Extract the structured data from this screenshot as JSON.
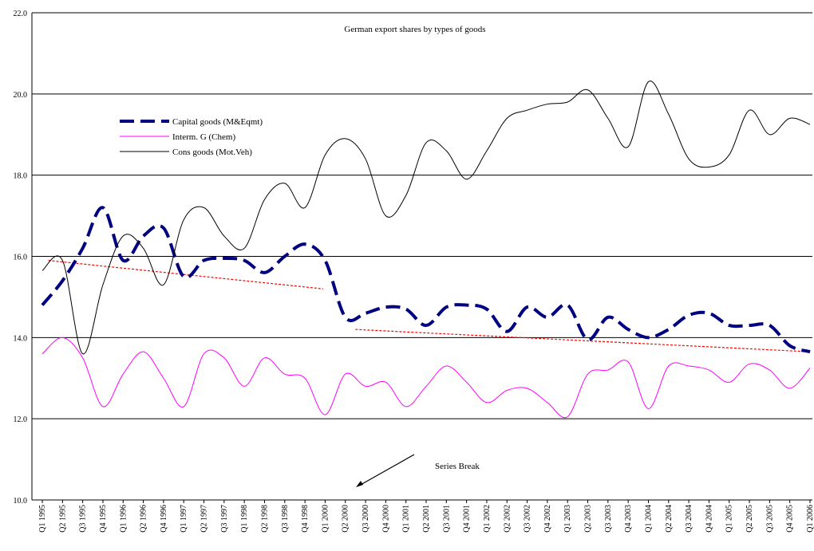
{
  "chart_data": {
    "type": "line",
    "title": "German export shares by types of goods",
    "categories": [
      "Q1 1995",
      "Q2 1995",
      "Q3 1995",
      "Q4 1995",
      "Q1 1996",
      "Q2 1996",
      "Q4 1996",
      "Q1 1997",
      "Q2 1997",
      "Q3 1997",
      "Q1 1998",
      "Q2 1998",
      "Q3 1998",
      "Q4 1998",
      "Q1 2000",
      "Q2 2000",
      "Q3 2000",
      "Q4 2000",
      "Q1 2001",
      "Q2 2001",
      "Q3 2001",
      "Q4 2001",
      "Q1 2002",
      "Q2 2002",
      "Q3 2002",
      "Q4 2002",
      "Q1 2003",
      "Q2 2003",
      "Q3 2003",
      "Q4 2003",
      "Q1 2004",
      "Q2 2004",
      "Q3 2004",
      "Q4 2004",
      "Q1 2005",
      "Q2 2005",
      "Q3 2005",
      "Q4 2005",
      "Q1 2006"
    ],
    "series": [
      {
        "name": "Capital goods (M&Eqmt)",
        "color": "#000080",
        "dash": true,
        "values": [
          14.8,
          15.4,
          16.2,
          17.2,
          15.9,
          16.5,
          16.7,
          15.5,
          15.9,
          15.95,
          15.9,
          15.6,
          16.0,
          16.3,
          15.9,
          14.5,
          14.6,
          14.75,
          14.7,
          14.3,
          14.75,
          14.8,
          14.7,
          14.15,
          14.75,
          14.5,
          14.8,
          13.95,
          14.5,
          14.2,
          14.0,
          14.2,
          14.55,
          14.6,
          14.3,
          14.3,
          14.3,
          13.8,
          13.65
        ]
      },
      {
        "name": "Interm. G (Chem)",
        "color": "#ff00ff",
        "values": [
          13.6,
          14.0,
          13.5,
          12.3,
          13.1,
          13.65,
          13.0,
          12.3,
          13.6,
          13.5,
          12.8,
          13.5,
          13.1,
          13.0,
          12.1,
          13.1,
          12.8,
          12.9,
          12.3,
          12.8,
          13.3,
          12.9,
          12.4,
          12.7,
          12.75,
          12.4,
          12.05,
          13.1,
          13.2,
          13.4,
          12.25,
          13.3,
          13.3,
          13.2,
          12.9,
          13.35,
          13.2,
          12.75,
          13.25
        ]
      },
      {
        "name": "Cons goods (Mot.Veh)",
        "color": "#000000",
        "values": [
          15.65,
          15.9,
          13.6,
          15.3,
          16.5,
          16.2,
          15.3,
          16.9,
          17.2,
          16.5,
          16.2,
          17.4,
          17.8,
          17.2,
          18.5,
          18.9,
          18.4,
          17.0,
          17.5,
          18.8,
          18.6,
          17.9,
          18.6,
          19.4,
          19.6,
          19.75,
          19.8,
          20.1,
          19.4,
          18.7,
          20.3,
          19.5,
          18.4,
          18.2,
          18.5,
          19.6,
          19.0,
          19.4,
          19.25
        ]
      }
    ],
    "trendlines": [
      {
        "color": "#ff0000",
        "x": [
          0.3,
          13.9
        ],
        "values": [
          15.9,
          15.2
        ]
      },
      {
        "color": "#ff0000",
        "x": [
          15.5,
          38
        ],
        "values": [
          14.2,
          13.65
        ]
      }
    ],
    "annotation": "Series Break",
    "ylim": [
      10,
      22
    ],
    "yticks": [
      {
        "value": 10,
        "label": "10.0"
      },
      {
        "value": 12,
        "label": "12.0"
      },
      {
        "value": 14,
        "label": "14.0"
      },
      {
        "value": 16,
        "label": "16.0"
      },
      {
        "value": 18,
        "label": "18.0"
      },
      {
        "value": 20,
        "label": "20.0"
      },
      {
        "value": 22,
        "label": "22.0"
      }
    ],
    "grid": true
  }
}
